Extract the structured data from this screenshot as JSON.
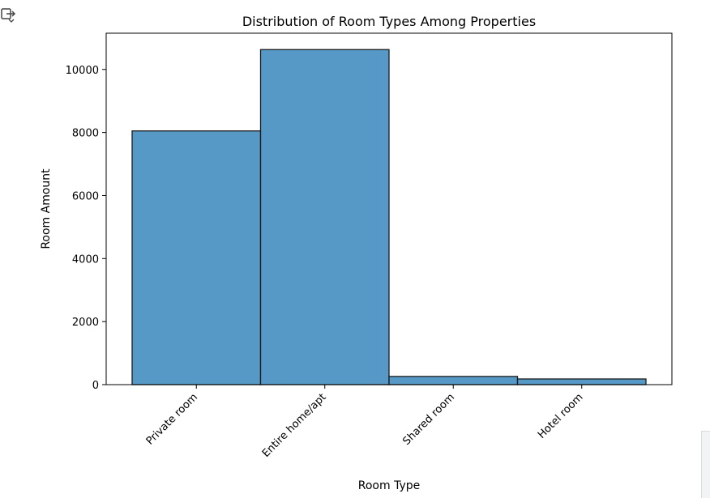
{
  "notebook": {
    "output_icon": "output-toggle-icon"
  },
  "chart_data": {
    "type": "bar",
    "title": "Distribution of Room Types Among Properties",
    "xlabel": "Room Type",
    "ylabel": "Room Amount",
    "categories": [
      "Private room",
      "Entire home/apt",
      "Shared room",
      "Hotel room"
    ],
    "values": [
      8050,
      10630,
      260,
      180
    ],
    "ylim": [
      0,
      11150
    ],
    "yticks": [
      0,
      2000,
      4000,
      6000,
      8000,
      10000
    ],
    "ytick_labels": [
      "0",
      "2000",
      "4000",
      "6000",
      "8000",
      "10000"
    ],
    "grid": false,
    "legend": "none",
    "colors": {
      "bar_fill": "#5799c6",
      "bar_edge": "#1a1a1a",
      "axis": "#000000"
    }
  }
}
